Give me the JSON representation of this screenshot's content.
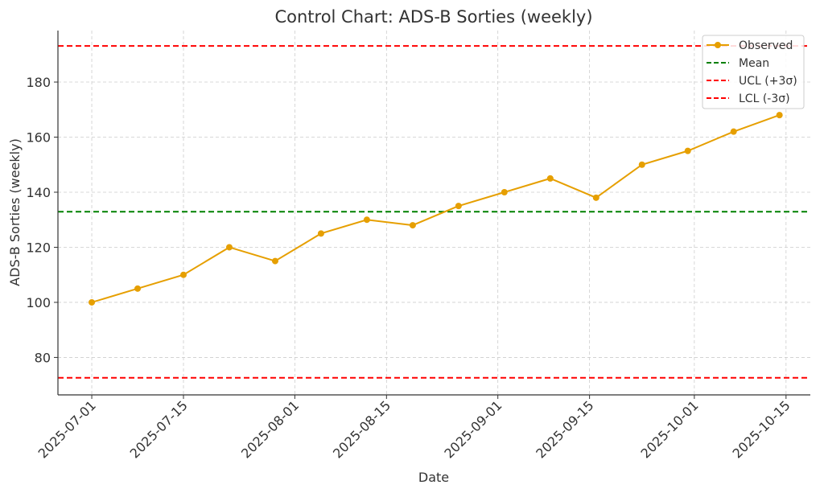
{
  "chart_data": {
    "type": "line",
    "title": "Control Chart: ADS-B Sorties (weekly)",
    "xlabel": "Date",
    "ylabel": "ADS-B Sorties (weekly)",
    "x": [
      "2025-07-01",
      "2025-07-08",
      "2025-07-15",
      "2025-07-22",
      "2025-07-29",
      "2025-08-05",
      "2025-08-12",
      "2025-08-19",
      "2025-08-26",
      "2025-09-02",
      "2025-09-09",
      "2025-09-16",
      "2025-09-23",
      "2025-09-30",
      "2025-10-07",
      "2025-10-14"
    ],
    "series": [
      {
        "name": "Observed",
        "values": [
          100,
          105,
          110,
          120,
          115,
          125,
          130,
          128,
          135,
          140,
          145,
          138,
          150,
          155,
          162,
          168
        ],
        "color": "#e69f00"
      }
    ],
    "reference_lines": [
      {
        "name": "Mean",
        "value": 132.9,
        "color": "#008000"
      },
      {
        "name": "UCL (+3σ)",
        "value": 193.1,
        "color": "#ff0000"
      },
      {
        "name": "LCL (-3σ)",
        "value": 72.6,
        "color": "#ff0000"
      }
    ],
    "xticks": [
      "2025-07-01",
      "2025-07-15",
      "2025-08-01",
      "2025-08-15",
      "2025-09-01",
      "2025-09-15",
      "2025-10-01",
      "2025-10-15"
    ],
    "yticks": [
      80,
      100,
      120,
      140,
      160,
      180
    ],
    "xlim": [
      "2025-06-25T20:00",
      "2025-10-18T17:00"
    ],
    "ylim": [
      66.4,
      198.7
    ],
    "grid": true,
    "legend": "top-right"
  }
}
